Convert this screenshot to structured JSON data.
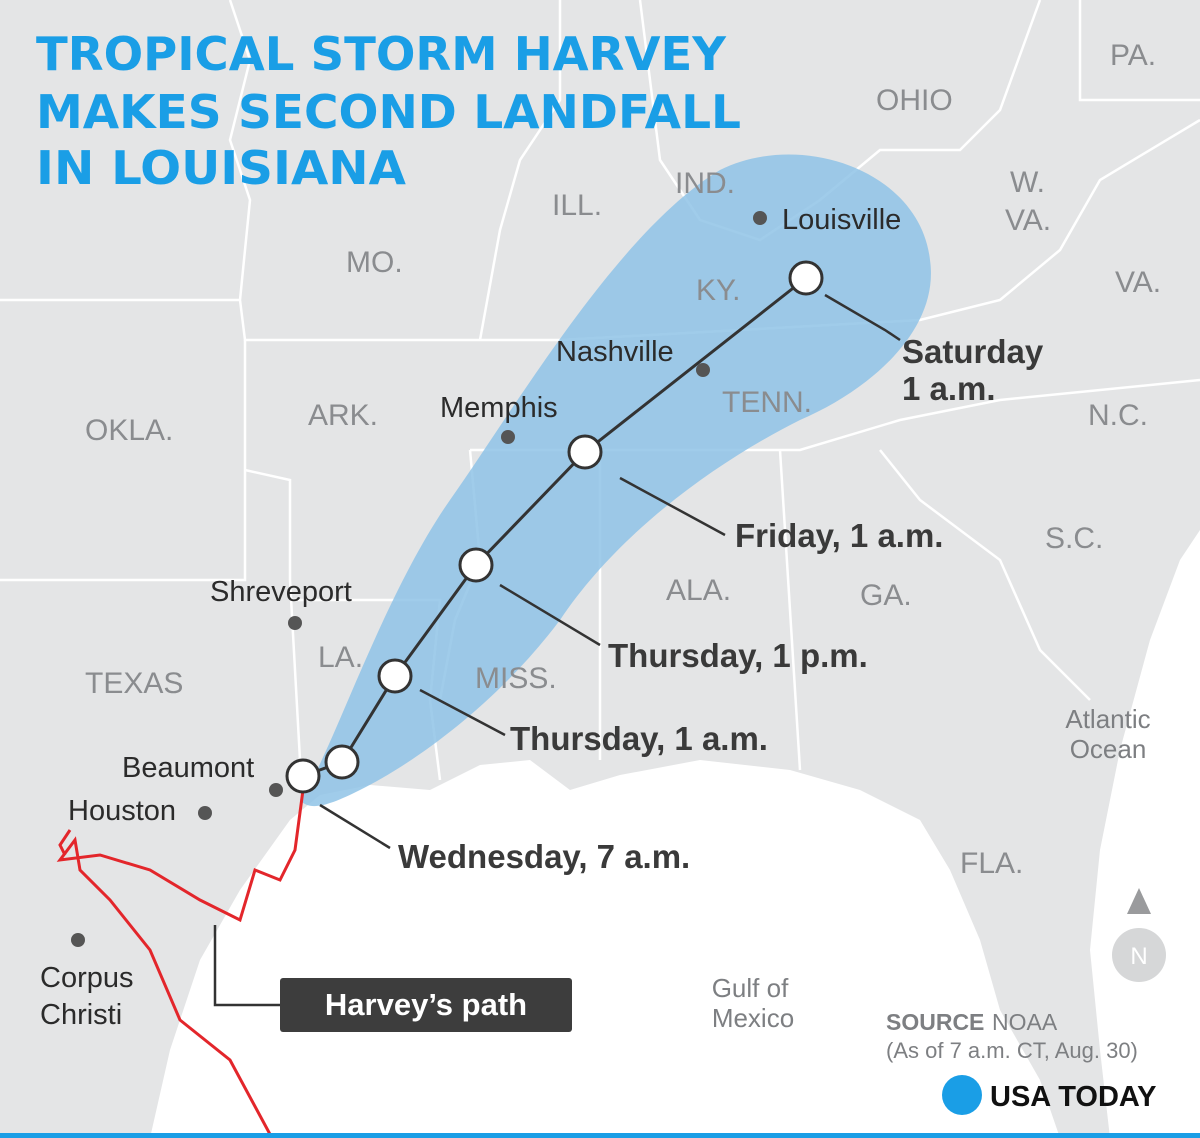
{
  "title": [
    "TROPICAL STORM HARVEY",
    "MAKES SECOND LANDFALL",
    "IN LOUISIANA"
  ],
  "states": [
    "PA.",
    "OHIO",
    "IND.",
    "ILL.",
    "MO.",
    "KY.",
    "W.",
    "VA.",
    "VA.",
    "OKLA.",
    "ARK.",
    "TENN.",
    "N.C.",
    "S.C.",
    "ALA.",
    "GA.",
    "LA.",
    "MISS.",
    "TEXAS",
    "FLA."
  ],
  "cities": [
    "Louisville",
    "Nashville",
    "Memphis",
    "Shreveport",
    "Beaumont",
    "Houston",
    [
      "Corpus",
      "Christi"
    ]
  ],
  "forecast": [
    [
      "Saturday",
      "1 a.m."
    ],
    "Friday, 1 a.m.",
    "Thursday, 1 p.m.",
    "Thursday, 1 a.m.",
    "Wednesday, 7 a.m."
  ],
  "water": [
    [
      "Atlantic",
      "Ocean"
    ],
    [
      "Gulf of",
      "Mexico"
    ]
  ],
  "legend": "Harvey’s path",
  "compass": "N",
  "source": {
    "label": "SOURCE",
    "name": "NOAA",
    "note": "(As of 7 a.m. CT, Aug. 30)"
  },
  "brand": "USA TODAY"
}
